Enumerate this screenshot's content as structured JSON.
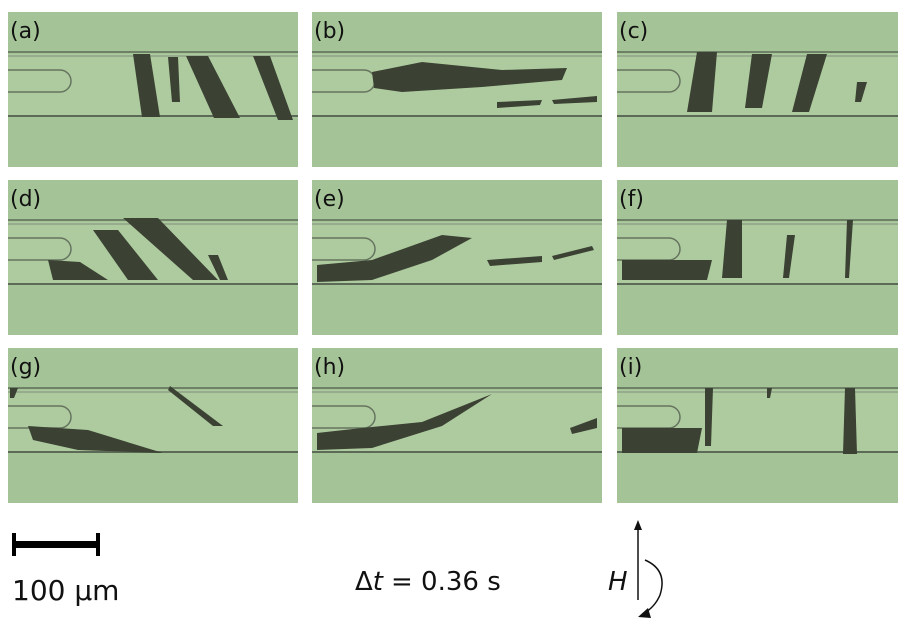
{
  "panels": [
    {
      "label": "(a)"
    },
    {
      "label": "(b)"
    },
    {
      "label": "(c)"
    },
    {
      "label": "(d)"
    },
    {
      "label": "(e)"
    },
    {
      "label": "(f)"
    },
    {
      "label": "(g)"
    },
    {
      "label": "(h)"
    },
    {
      "label": "(i)"
    }
  ],
  "scale_bar": {
    "label": "100 µm"
  },
  "time_step": {
    "symbol": "Δ",
    "variable": "t",
    "value": "= 0.36 s"
  },
  "field": {
    "label": "H"
  }
}
